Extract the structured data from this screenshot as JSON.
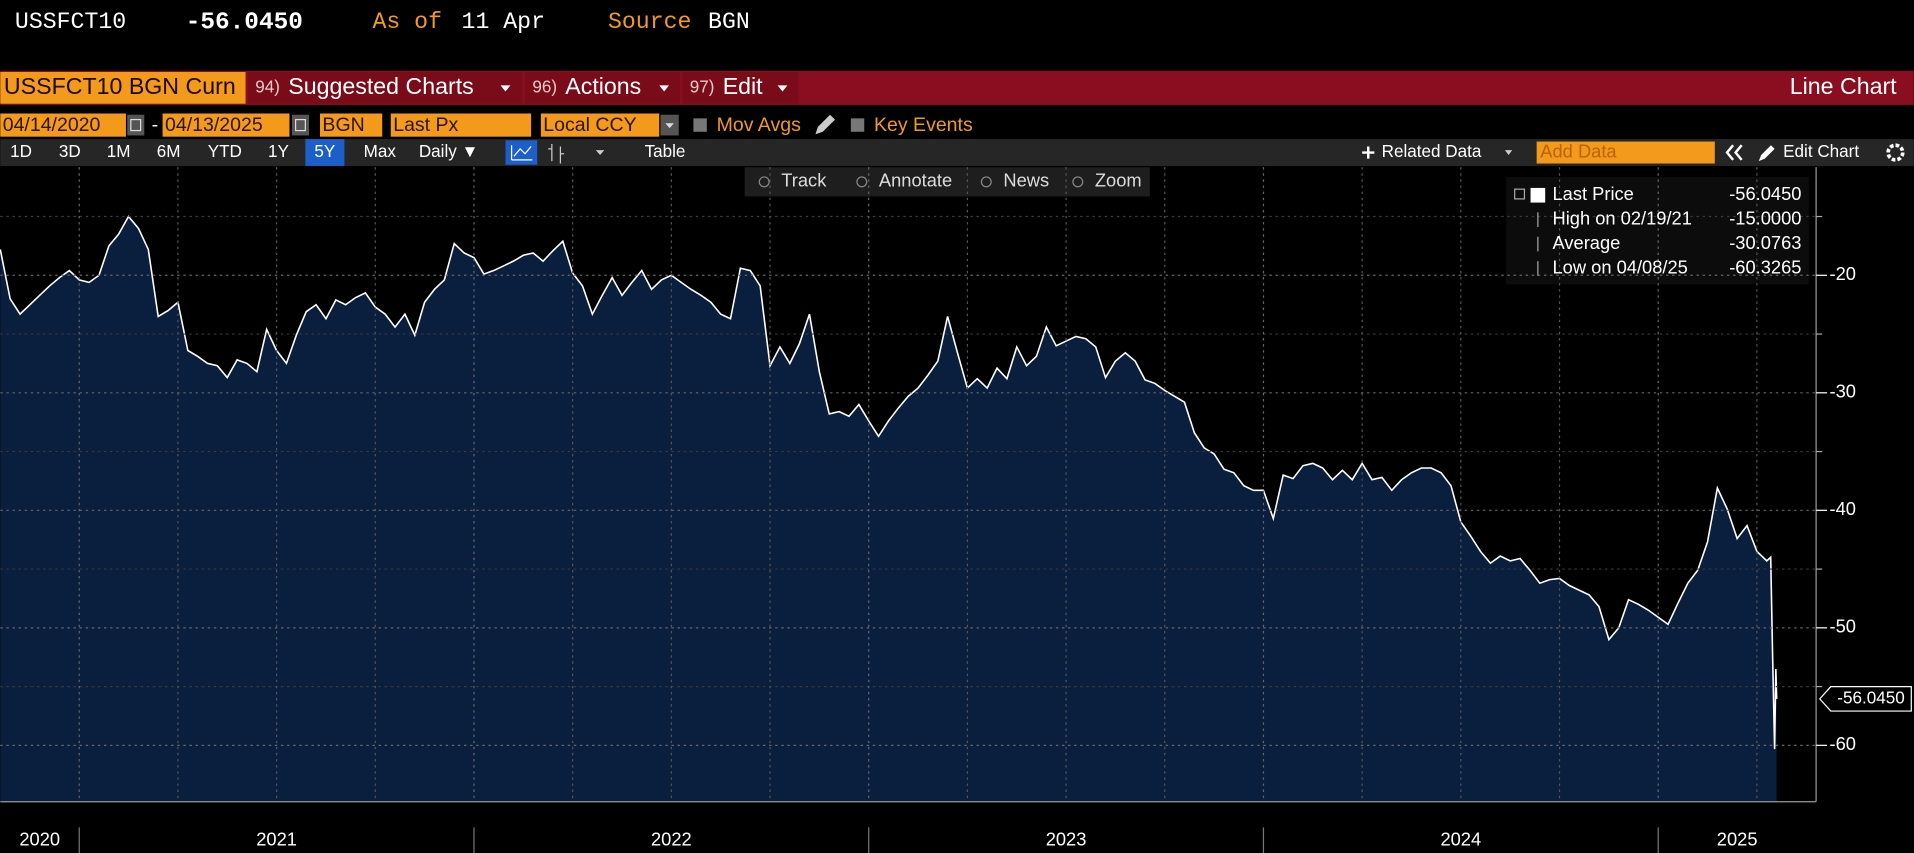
{
  "header": {
    "ticker": "USSFCT10",
    "price": "-56.0450",
    "as_of_label": "As of",
    "as_of": "11 Apr",
    "source_label": "Source",
    "source": "BGN"
  },
  "toolbar": {
    "security": "USSFCT10 BGN Curn",
    "menus": [
      {
        "key": "94)",
        "label": "Suggested Charts"
      },
      {
        "key": "96)",
        "label": "Actions"
      },
      {
        "key": "97)",
        "label": "Edit"
      }
    ],
    "chart_kind": "Line Chart"
  },
  "controls": {
    "start": "04/14/2020",
    "dash": "-",
    "end": "04/13/2025",
    "source": "BGN",
    "field": "Last Px",
    "currency": "Local CCY",
    "mov_avgs": "Mov Avgs",
    "key_events": "Key Events"
  },
  "periods": [
    "1D",
    "3D",
    "1M",
    "6M",
    "YTD",
    "1Y",
    "5Y",
    "Max"
  ],
  "selected_period": "5Y",
  "frequency": "Daily ▼",
  "table": "Table",
  "related_data": "Related Data",
  "add_data": "Add Data",
  "edit_chart": "Edit Chart",
  "chart_tools": [
    "Track",
    "Annotate",
    "News",
    "Zoom"
  ],
  "chart_data": {
    "type": "area",
    "line_color": "#ffffff",
    "fill_color": "#0a1e3d",
    "grid": true,
    "xlim": [
      2020.8,
      2025.4
    ],
    "ylim": [
      -64.8,
      -10.8
    ],
    "yticks": [
      -60,
      -50,
      -40,
      -30,
      -20
    ],
    "yminor": [
      -55,
      -45,
      -35,
      -25,
      -15
    ],
    "xticks": [
      2021,
      2022,
      2023,
      2024,
      2025
    ],
    "xminor": [
      2021.25,
      2021.5,
      2021.75,
      2022.25,
      2022.5,
      2022.75,
      2023.25,
      2023.5,
      2023.75,
      2024.25,
      2024.5,
      2024.75,
      2025.25
    ],
    "year_labels": [
      2020,
      2021,
      2022,
      2023,
      2024,
      2025
    ],
    "legend_stats": [
      {
        "label": "Last Price",
        "value": "-56.0450"
      },
      {
        "label": "High on 02/19/21",
        "value": "-15.0000"
      },
      {
        "label": "Average",
        "value": "-30.0763"
      },
      {
        "label": "Low on 04/08/25",
        "value": "-60.3265"
      }
    ],
    "series": [
      {
        "name": "Last Price",
        "x": [
          2020.8,
          2020.825,
          2020.85,
          2020.875,
          2020.9,
          2020.925,
          2020.95,
          2020.975,
          2021,
          2021.025,
          2021.05,
          2021.075,
          2021.1,
          2021.125,
          2021.15,
          2021.175,
          2021.2,
          2021.225,
          2021.25,
          2021.275,
          2021.3,
          2021.325,
          2021.35,
          2021.375,
          2021.4,
          2021.425,
          2021.45,
          2021.475,
          2021.5,
          2021.525,
          2021.55,
          2021.575,
          2021.6,
          2021.625,
          2021.65,
          2021.675,
          2021.7,
          2021.725,
          2021.75,
          2021.775,
          2021.8,
          2021.825,
          2021.85,
          2021.875,
          2021.9,
          2021.925,
          2021.95,
          2021.975,
          2022,
          2022.025,
          2022.05,
          2022.075,
          2022.1,
          2022.125,
          2022.15,
          2022.175,
          2022.2,
          2022.225,
          2022.25,
          2022.275,
          2022.3,
          2022.325,
          2022.35,
          2022.375,
          2022.4,
          2022.425,
          2022.45,
          2022.475,
          2022.5,
          2022.525,
          2022.55,
          2022.575,
          2022.6,
          2022.625,
          2022.65,
          2022.675,
          2022.7,
          2022.725,
          2022.75,
          2022.775,
          2022.8,
          2022.825,
          2022.85,
          2022.875,
          2022.9,
          2022.925,
          2022.95,
          2022.975,
          2023,
          2023.025,
          2023.05,
          2023.075,
          2023.1,
          2023.125,
          2023.15,
          2023.175,
          2023.2,
          2023.225,
          2023.25,
          2023.275,
          2023.3,
          2023.325,
          2023.35,
          2023.375,
          2023.4,
          2023.425,
          2023.45,
          2023.475,
          2023.5,
          2023.525,
          2023.55,
          2023.575,
          2023.6,
          2023.625,
          2023.65,
          2023.675,
          2023.7,
          2023.725,
          2023.75,
          2023.775,
          2023.8,
          2023.825,
          2023.85,
          2023.875,
          2023.9,
          2023.925,
          2023.95,
          2023.975,
          2024,
          2024.025,
          2024.05,
          2024.075,
          2024.1,
          2024.125,
          2024.15,
          2024.175,
          2024.2,
          2024.225,
          2024.25,
          2024.275,
          2024.3,
          2024.325,
          2024.35,
          2024.375,
          2024.4,
          2024.425,
          2024.45,
          2024.475,
          2024.5,
          2024.525,
          2024.55,
          2024.575,
          2024.6,
          2024.625,
          2024.65,
          2024.675,
          2024.7,
          2024.725,
          2024.75,
          2024.775,
          2024.8,
          2024.825,
          2024.85,
          2024.875,
          2024.9,
          2024.925,
          2024.95,
          2024.975,
          2025,
          2025.025,
          2025.05,
          2025.075,
          2025.1,
          2025.125,
          2025.15,
          2025.175,
          2025.2,
          2025.225,
          2025.25,
          2025.275,
          2025.285,
          2025.29,
          2025.295,
          2025.298,
          2025.3
        ],
        "values": [
          -17.8,
          -22.0,
          -23.3,
          -22.5,
          -21.7,
          -20.9,
          -20.2,
          -19.6,
          -20.4,
          -20.6,
          -20,
          -17.5,
          -16.5,
          -15.0,
          -16.0,
          -17.8,
          -23.5,
          -23.0,
          -22.3,
          -26.4,
          -26.9,
          -27.5,
          -27.7,
          -28.7,
          -27.2,
          -27.5,
          -28.2,
          -24.6,
          -26.4,
          -27.5,
          -25.1,
          -23.1,
          -22.5,
          -23.7,
          -22.1,
          -22.5,
          -21.9,
          -21.5,
          -22.7,
          -23.3,
          -24.4,
          -23.3,
          -25.1,
          -22.3,
          -21.2,
          -20.4,
          -17.3,
          -18.1,
          -18.5,
          -19.9,
          -19.6,
          -19.2,
          -18.8,
          -18.3,
          -18.1,
          -18.8,
          -17.9,
          -17.1,
          -19.8,
          -20.9,
          -23.3,
          -21.7,
          -20.2,
          -21.7,
          -20.6,
          -19.6,
          -21.2,
          -20.4,
          -20,
          -20.6,
          -21.2,
          -21.7,
          -22.3,
          -23.3,
          -23.7,
          -19.4,
          -19.6,
          -20.9,
          -27.7,
          -26.1,
          -27.5,
          -25.8,
          -23.3,
          -28.2,
          -31.8,
          -31.6,
          -32.0,
          -31.0,
          -32.4,
          -33.7,
          -32.4,
          -31.3,
          -30.3,
          -29.6,
          -28.5,
          -27.3,
          -23.5,
          -26.6,
          -29.6,
          -28.8,
          -29.6,
          -27.9,
          -28.8,
          -26.1,
          -27.7,
          -26.9,
          -24.4,
          -26.0,
          -25.6,
          -25.2,
          -25.4,
          -26.1,
          -28.7,
          -27.3,
          -26.6,
          -27.3,
          -28.9,
          -29.2,
          -29.8,
          -30.3,
          -30.8,
          -33.4,
          -34.7,
          -35.2,
          -36.5,
          -36.8,
          -37.9,
          -38.3,
          -38.3,
          -40.7,
          -37.0,
          -37.3,
          -36.2,
          -36.0,
          -36.4,
          -37.4,
          -36.6,
          -37.4,
          -36.0,
          -37.4,
          -37.2,
          -38.3,
          -37.4,
          -36.8,
          -36.4,
          -36.4,
          -36.8,
          -37.9,
          -41.0,
          -42.2,
          -43.5,
          -44.5,
          -43.9,
          -44.3,
          -44.1,
          -45.1,
          -46.2,
          -45.9,
          -45.8,
          -46.4,
          -46.8,
          -47.2,
          -48.2,
          -51.0,
          -50.0,
          -47.6,
          -48.0,
          -48.5,
          -49.1,
          -49.7,
          -47.9,
          -46.2,
          -45.1,
          -42.7,
          -38.1,
          -39.9,
          -42.4,
          -41.3,
          -43.5,
          -44.3,
          -44.0,
          -52.6,
          -60.3265,
          -53.5,
          -56.045
        ]
      }
    ]
  }
}
